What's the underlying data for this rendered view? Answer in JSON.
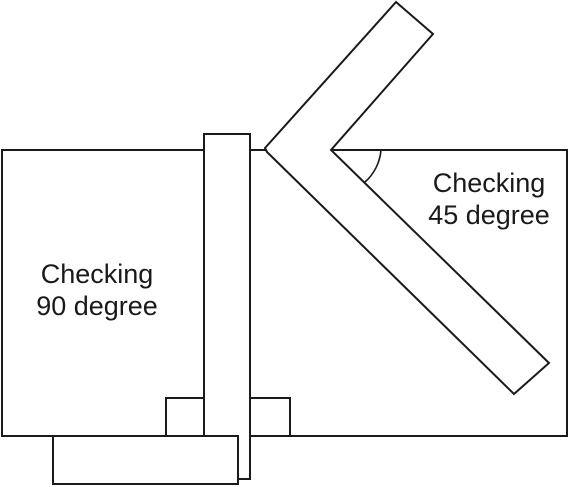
{
  "labels": {
    "check_90": [
      "Checking",
      "90 degree"
    ],
    "check_45": [
      "Checking",
      "45 degree"
    ]
  },
  "colors": {
    "stroke": "#1a1a1a",
    "fill": "#ffffff"
  }
}
